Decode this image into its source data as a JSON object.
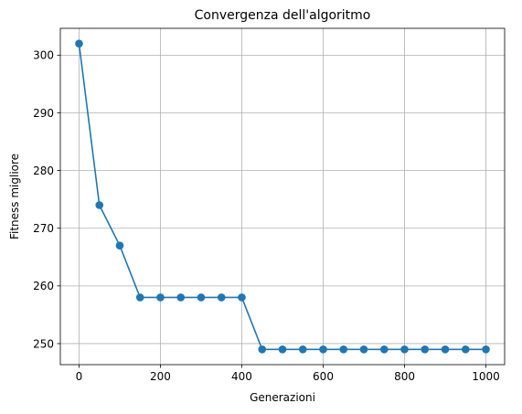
{
  "chart_data": {
    "type": "line",
    "title": "Convergenza dell'algoritmo",
    "xlabel": "Generazioni",
    "ylabel": "Fitness migliore",
    "xlim": [
      -46,
      1046
    ],
    "ylim": [
      246.35,
      304.65
    ],
    "xticks": [
      0,
      200,
      400,
      600,
      800,
      1000
    ],
    "yticks": [
      250,
      260,
      270,
      280,
      290,
      300
    ],
    "grid": true,
    "series": [
      {
        "color": "#1f77b4",
        "marker": "circle",
        "x": [
          0,
          50,
          100,
          150,
          200,
          250,
          300,
          350,
          400,
          450,
          500,
          550,
          600,
          650,
          700,
          750,
          800,
          850,
          900,
          950,
          1000
        ],
        "y": [
          302,
          274,
          267,
          258,
          258,
          258,
          258,
          258,
          258,
          249,
          249,
          249,
          249,
          249,
          249,
          249,
          249,
          249,
          249,
          249,
          249
        ]
      }
    ]
  }
}
